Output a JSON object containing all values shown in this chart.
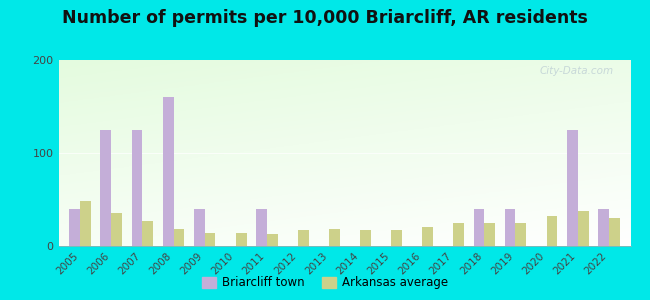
{
  "title": "Number of permits per 10,000 Briarcliff, AR residents",
  "years": [
    2005,
    2006,
    2007,
    2008,
    2009,
    2010,
    2011,
    2012,
    2013,
    2014,
    2015,
    2016,
    2017,
    2018,
    2019,
    2020,
    2021,
    2022
  ],
  "briarcliff": [
    40,
    125,
    125,
    160,
    40,
    0,
    40,
    0,
    0,
    0,
    0,
    0,
    0,
    40,
    40,
    0,
    125,
    40
  ],
  "arkansas": [
    48,
    35,
    27,
    18,
    14,
    14,
    13,
    17,
    18,
    17,
    17,
    20,
    25,
    25,
    25,
    32,
    38,
    30
  ],
  "briarcliff_color": "#c4aed8",
  "arkansas_color": "#cdd18a",
  "outer_bg": "#00e8e8",
  "ylim": [
    0,
    200
  ],
  "yticks": [
    0,
    100,
    200
  ],
  "bar_width": 0.35,
  "legend_labels": [
    "Briarcliff town",
    "Arkansas average"
  ],
  "title_fontsize": 12.5,
  "tick_fontsize": 7.5
}
